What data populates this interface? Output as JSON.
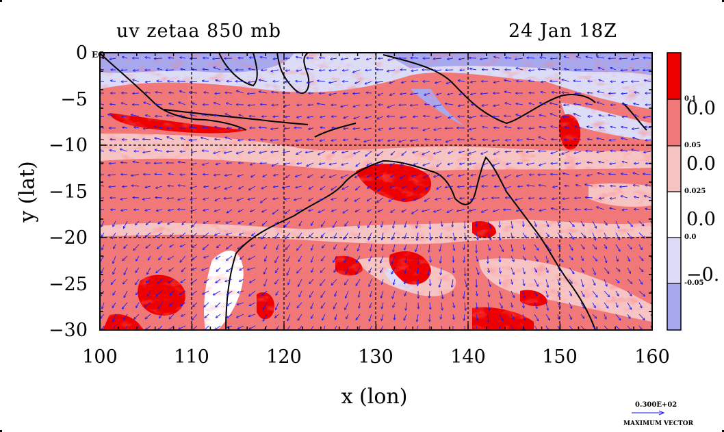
{
  "title_left": "uv zetaa 850 mb",
  "title_right": "24 Jan 18Z",
  "axes": {
    "xlabel": "x (lon)",
    "ylabel": "y (lat)",
    "x_ticks": [
      "100",
      "110",
      "120",
      "130",
      "140",
      "150",
      "160"
    ],
    "y_ticks": [
      "0",
      "−5",
      "−10",
      "−15",
      "−20",
      "−25",
      "−30"
    ],
    "eq_label": "EQ",
    "xlim": [
      100,
      160
    ],
    "ylim": [
      -30,
      0
    ]
  },
  "colorbar": {
    "small_labels": [
      "0.1",
      "0.05",
      "0.025",
      "0.0",
      "-0.05"
    ],
    "large_labels": [
      "0.0",
      "0.0",
      "0.0",
      "−0."
    ],
    "colors": [
      "#ee0000",
      "#f07878",
      "#f7c4c4",
      "#ffffff",
      "#dcdcf7",
      "#a8a8ee"
    ]
  },
  "vector_legend": {
    "value": "0.300E+02",
    "label": "MAXIMUM VECTOR"
  },
  "colors": {
    "land_outline": "#000000",
    "vector": "#1a1aee",
    "grid": "#000000"
  },
  "chart_data": {
    "type": "heatmap",
    "field": "zetaa",
    "vector_field": "uv",
    "level": "850 mb",
    "xlabel": "x (lon)",
    "ylabel": "y (lat)",
    "xlim": [
      100,
      160
    ],
    "ylim": [
      -30,
      0
    ],
    "levels": [
      -0.05,
      0.0,
      0.025,
      0.05,
      0.1
    ],
    "grid": true,
    "legend": "right"
  }
}
